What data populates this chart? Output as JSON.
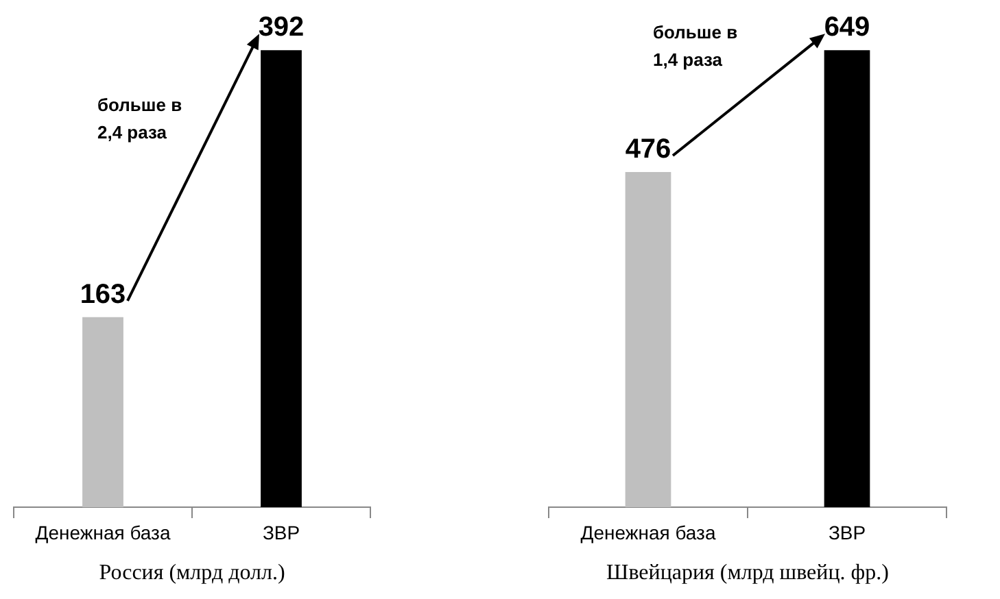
{
  "chart_data": [
    {
      "type": "bar",
      "title": "Россия (млрд долл.)",
      "categories": [
        "Денежная база",
        "ЗВР"
      ],
      "values": [
        163,
        392
      ],
      "colors": [
        "#bfbfbf",
        "#000000"
      ],
      "data_labels": true,
      "tick_labels": "x",
      "grid": false,
      "annotations": [
        "больше в 2,4 раза"
      ]
    },
    {
      "type": "bar",
      "title": "Швейцария (млрд швейц. фр.)",
      "categories": [
        "Денежная база",
        "ЗВР"
      ],
      "values": [
        476,
        649
      ],
      "colors": [
        "#bfbfbf",
        "#000000"
      ],
      "data_labels": true,
      "tick_labels": "x",
      "grid": false,
      "annotations": [
        "больше в 1,4 раза"
      ]
    }
  ]
}
